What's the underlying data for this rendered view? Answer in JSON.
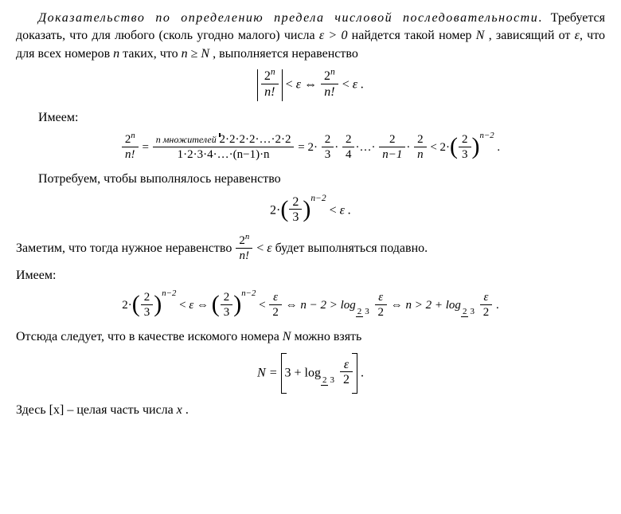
{
  "p1_lead": "Доказательство по определению предела числовой последовательности",
  "p1_rest": ". Требуется доказать, что для любого (сколь угодно малого) числа ",
  "p1_eps": "ε > 0",
  "p1_after_eps": " найдется такой номер ",
  "p1_N": "N",
  "p1_after_N": " , зависящий от ",
  "p1_eps2": "ε",
  "p1_after_eps2": ", что для всех номеров ",
  "p1_n": "n",
  "p1_after_n": " таких, что ",
  "p1_ngeN": "n ≥ N",
  "p1_tail": " , выполняется неравенство",
  "eq1": {
    "num": "2",
    "num_exp": "n",
    "den": "n!",
    "lt1": " < ",
    "eps": "ε",
    "iff": "  ⇔  ",
    "num2": "2",
    "num2_exp": "n",
    "den2": "n!",
    "lt2": " < ",
    "eps2": " ε .",
    "period": ""
  },
  "p2": "Имеем:",
  "eq2": {
    "lhs_num": "2",
    "lhs_num_exp": "n",
    "lhs_den": "n!",
    "eq": " = ",
    "brace_label": "n  множителей",
    "prod_num": "2·2·2·2·…·2·2",
    "prod_den": "1·2·3·4·…·(n−1)·n",
    "eq2": " = 2·",
    "f23n": "2",
    "f23d": "3",
    "dot": "·",
    "f24n": "2",
    "f24d": "4",
    "dots": "·…·",
    "fn1n": "2",
    "fn1d": "n−1",
    "fnnn": "2",
    "fnnd": "n",
    "lt": " < 2·",
    "base_n": "2",
    "base_d": "3",
    "exp": "n−2",
    "period": " ."
  },
  "p3": "Потребуем, чтобы выполнялось неравенство",
  "eq3": {
    "two": "2·",
    "base_n": "2",
    "base_d": "3",
    "exp": "n−2",
    "lt": " < ",
    "eps": "ε .",
    "period": ""
  },
  "p4_a": "Заметим, что тогда нужное неравенство ",
  "p4_num": "2",
  "p4_num_exp": "n",
  "p4_den": "n!",
  "p4_lt": " < ",
  "p4_eps": "ε",
  "p4_b": "  будет выполняться подавно.",
  "p5": "Имеем:",
  "eq4": {
    "two": "2·",
    "bn": "2",
    "bd": "3",
    "exp": "n−2",
    "lt": " < ",
    "eps": "ε",
    "iff1": "  ⇔  ",
    "bn2": "2",
    "bd2": "3",
    "exp2": "n−2",
    "lt2": " < ",
    "e2n": "ε",
    "e2d": "2",
    "iff2": "  ⇔  ",
    "cond1": "n − 2 > log",
    "logarg_n": "ε",
    "logarg_d": "2",
    "iff3": "  ⇔  ",
    "cond2": "n > 2 + log",
    "period": " ."
  },
  "p6_a": "Отсюда следует, что в качестве искомого номера ",
  "p6_N": "N",
  "p6_b": " можно взять",
  "eq5": {
    "Neq": "N = ",
    "inside_a": "3 + log",
    "arg_n": "ε",
    "arg_d": "2",
    "period": " ."
  },
  "p7_a": "Здесь ",
  "p7_br": "[x]",
  "p7_b": " – целая часть числа ",
  "p7_x": "x",
  "p7_c": " .",
  "colors": {
    "text": "#000000",
    "bg": "#ffffff"
  }
}
